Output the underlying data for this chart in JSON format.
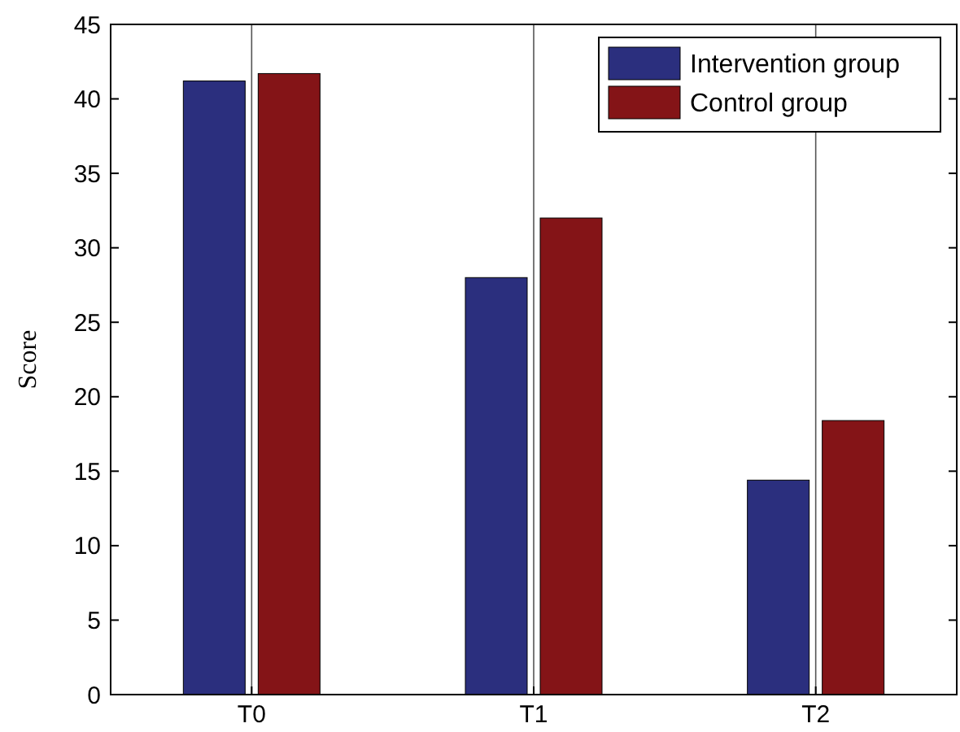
{
  "chart_data": {
    "type": "bar",
    "ylabel": "Score",
    "categories": [
      "T0",
      "T1",
      "T2"
    ],
    "series": [
      {
        "name": "Intervention group",
        "color": "#2b2f7e",
        "values": [
          41.2,
          28.0,
          14.4
        ]
      },
      {
        "name": "Control group",
        "color": "#841417",
        "values": [
          41.7,
          32.0,
          18.4
        ]
      }
    ],
    "ylim": [
      0,
      45
    ],
    "yticks": [
      0,
      5,
      10,
      15,
      20,
      25,
      30,
      35,
      40,
      45
    ],
    "grid": "x",
    "legend": "top right"
  }
}
